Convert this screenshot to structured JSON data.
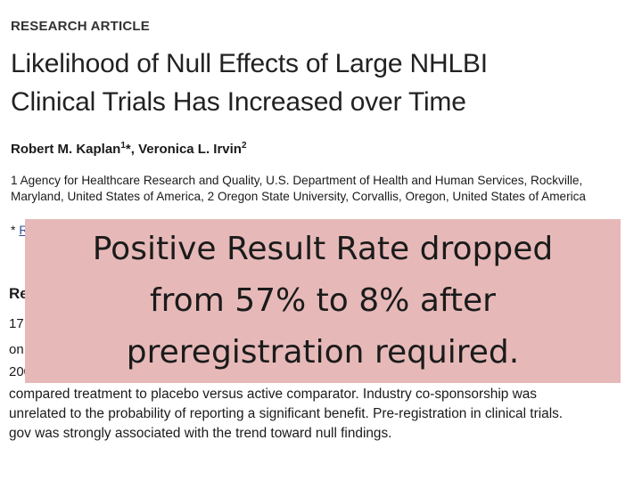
{
  "article_type": "RESEARCH ARTICLE",
  "title_lines": [
    "Likelihood of Null Effects of Large NHLBI",
    "Clinical Trials Has Increased over Time"
  ],
  "authors": {
    "author1_name": "Robert M. Kaplan",
    "author1_sup": "1",
    "author1_mark": "*",
    "separator": ", ",
    "author2_name": "Veronica L. Irvin",
    "author2_sup": "2"
  },
  "affiliations": {
    "line1": "1 Agency for Healthcare Research and Quality, U.S. Department of Health and Human Services, Rockville,",
    "line2": "Maryland, United States of America, 2 Oregon State University, Corvallis, Oregon, United States of America"
  },
  "correspondence": {
    "mark": "*",
    "link_fragment": "R"
  },
  "section_heading_fragment": "Re",
  "partial_lines": [
    "17",
    "on",
    "200"
  ],
  "body_lines": [
    "compared treatment to placebo versus active comparator. Industry co-sponsorship was",
    "unrelated to the probability of reporting a significant benefit. Pre-registration in clinical trials.",
    "gov was strongly associated with the trend toward null findings."
  ],
  "overlay": {
    "lines": [
      "Positive Result Rate dropped",
      "from 57% to 8% after",
      "preregistration required."
    ],
    "background": "#e6b9b8"
  }
}
